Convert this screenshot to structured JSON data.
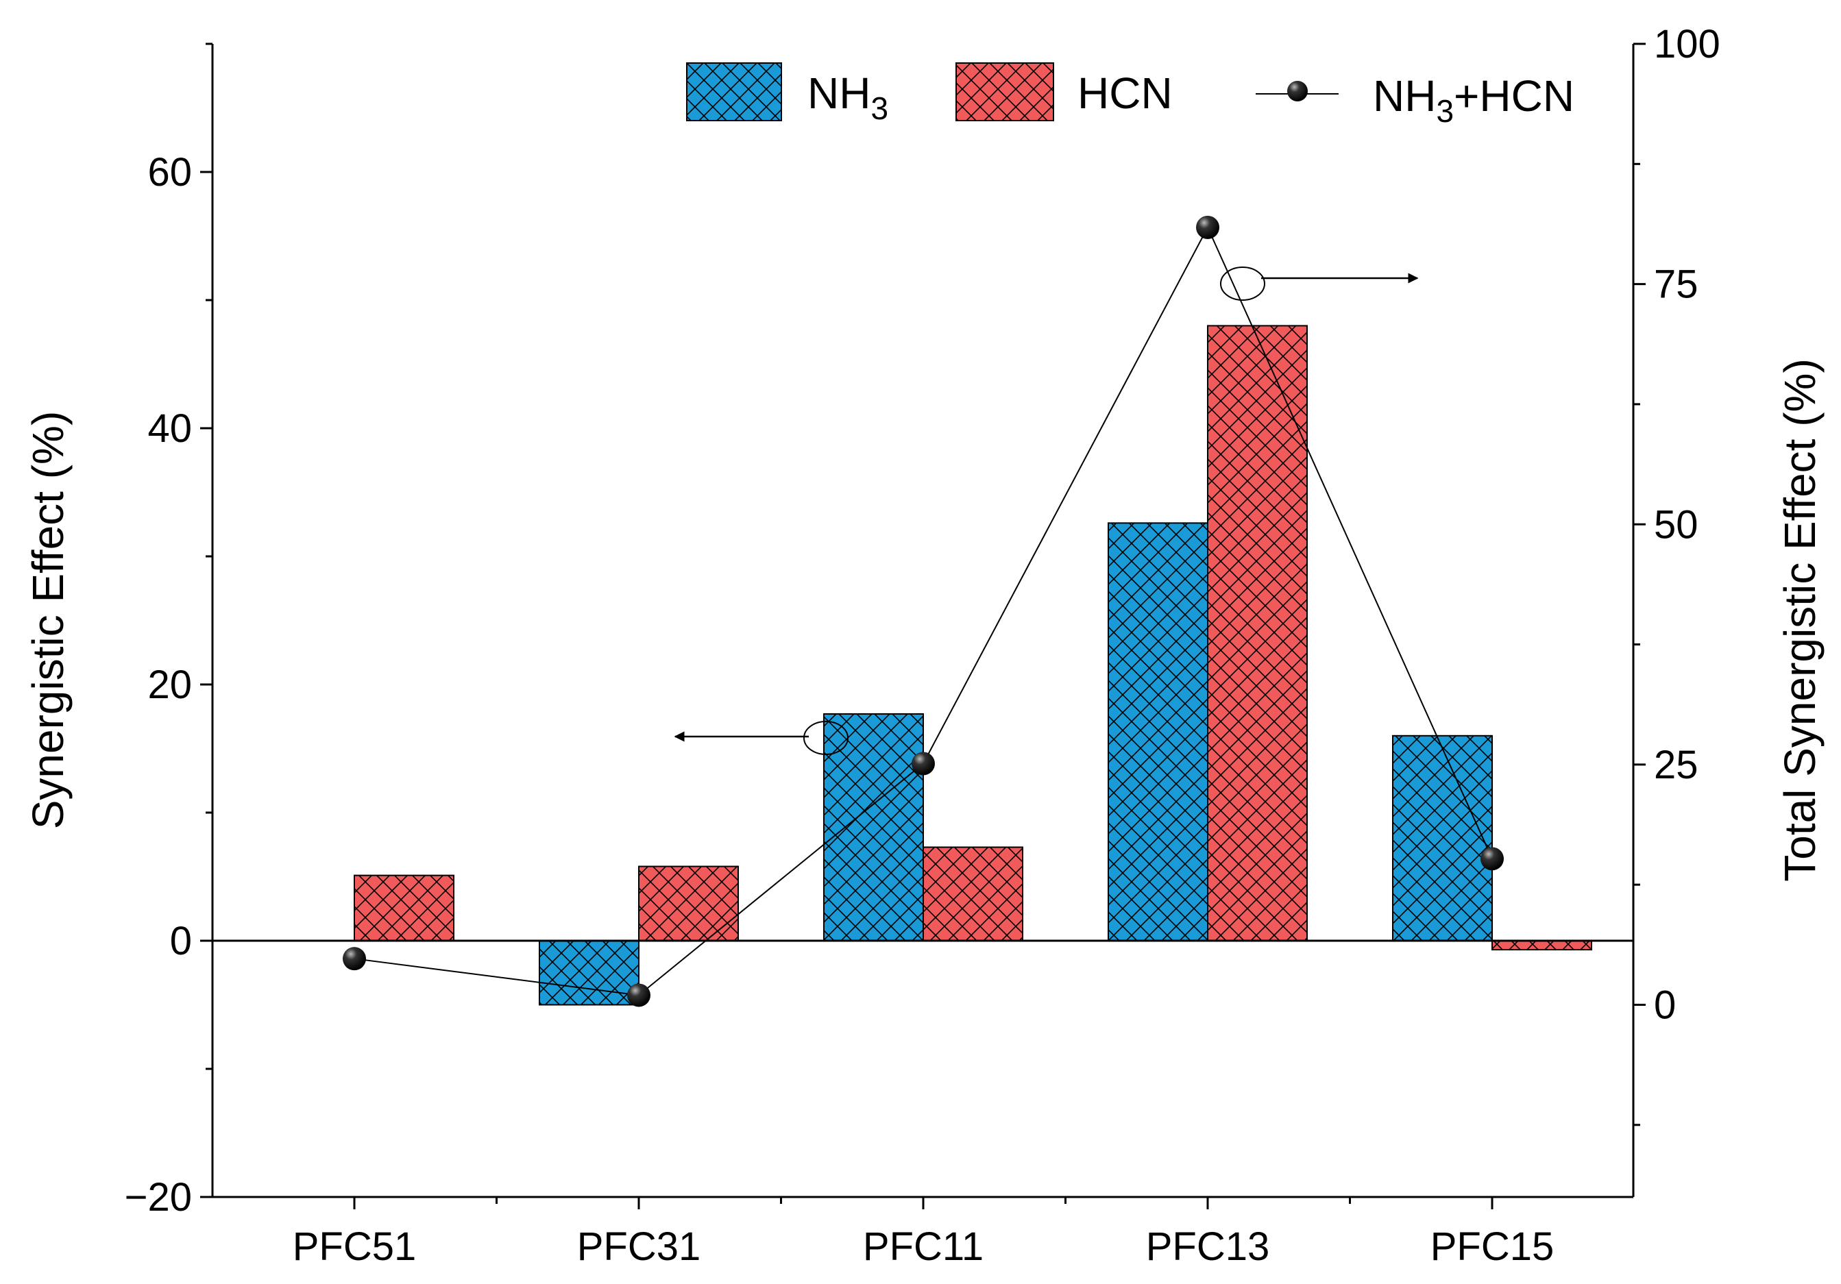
{
  "colors": {
    "nh3": "#1a9ad6",
    "hcn": "#f05a5a",
    "line": "#000000"
  },
  "chart_data": {
    "type": "bar",
    "categories": [
      "PFC51",
      "PFC31",
      "PFC11",
      "PFC13",
      "PFC15"
    ],
    "series": [
      {
        "name": "NH3",
        "label_main": "NH",
        "label_sub": "3",
        "axis": "left",
        "values": [
          0.0,
          -5.0,
          17.7,
          32.6,
          16.0
        ]
      },
      {
        "name": "HCN",
        "label_main": "HCN",
        "axis": "left",
        "values": [
          5.1,
          5.8,
          7.3,
          48.0,
          -0.7
        ]
      }
    ],
    "line_series": {
      "name": "NH3+HCN",
      "label_main": "NH",
      "label_sub": "3",
      "label_rest": "+HCN",
      "axis": "right",
      "values": [
        4.8,
        1.0,
        25.1,
        80.9,
        15.2
      ]
    },
    "left_axis": {
      "label": "Synergistic Effect (%)",
      "ylim": [
        -20,
        70
      ],
      "ticks": [
        -20,
        0,
        20,
        40,
        60
      ],
      "tick_labels": [
        "−20",
        "0",
        "20",
        "40",
        "60"
      ],
      "minor_step": 10
    },
    "right_axis": {
      "label": "Total Synergistic Effect (%)",
      "ylim": [
        -20,
        100
      ],
      "ticks": [
        0,
        25,
        50,
        75,
        100
      ],
      "tick_labels": [
        "0",
        "25",
        "50",
        "75",
        "100"
      ],
      "minor_step": 12.5
    },
    "legend_position": "top-right",
    "annotations": [
      "arrow from circled NH3 bar group pointing left to left axis",
      "arrow from circled NH3+HCN line pointing right to right axis"
    ]
  }
}
